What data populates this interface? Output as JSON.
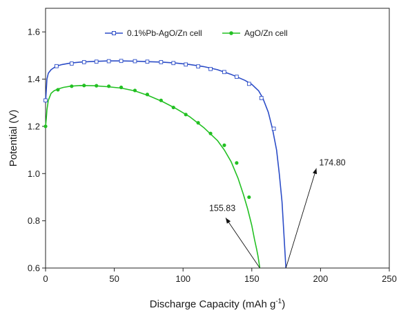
{
  "chart_data": {
    "type": "line",
    "title": "",
    "xlabel": "Discharge Capacity (mAh g",
    "xlabel_sup": "-1",
    "xlabel_tail": ")",
    "ylabel": "Potential (V)",
    "xlim": [
      0,
      250
    ],
    "ylim": [
      0.6,
      1.7
    ],
    "xticks": [
      0,
      50,
      100,
      150,
      200,
      250
    ],
    "yticks": [
      0.6,
      0.8,
      1.0,
      1.2,
      1.4,
      1.6
    ],
    "ytick_labels": [
      "0.6",
      "0.8",
      "1.0",
      "1.2",
      "1.4",
      "1.6"
    ],
    "grid": false,
    "legend_position": "top",
    "series": [
      {
        "name": "0.1%Pb-AgO/Zn cell",
        "color": "#2b4cc7",
        "marker": "open-square",
        "x": [
          0,
          0.5,
          1,
          2,
          4,
          6,
          8,
          12,
          18,
          25,
          35,
          45,
          55,
          65,
          75,
          85,
          95,
          105,
          115,
          125,
          135,
          145,
          150,
          155,
          158,
          162,
          165,
          168,
          170,
          172,
          173,
          174,
          174.8
        ],
        "y": [
          1.3,
          1.35,
          1.4,
          1.425,
          1.44,
          1.448,
          1.455,
          1.462,
          1.468,
          1.472,
          1.475,
          1.477,
          1.477,
          1.476,
          1.474,
          1.472,
          1.468,
          1.462,
          1.453,
          1.44,
          1.42,
          1.395,
          1.378,
          1.35,
          1.32,
          1.26,
          1.19,
          1.1,
          1.0,
          0.88,
          0.78,
          0.68,
          0.6
        ],
        "markers_x": [
          0,
          8,
          19,
          28,
          37,
          46,
          55,
          65,
          74,
          84,
          93,
          102,
          111,
          120,
          130,
          139,
          148,
          157,
          166
        ],
        "markers_y": [
          1.31,
          1.455,
          1.466,
          1.472,
          1.474,
          1.476,
          1.477,
          1.476,
          1.474,
          1.472,
          1.468,
          1.462,
          1.454,
          1.443,
          1.43,
          1.41,
          1.38,
          1.32,
          1.19
        ]
      },
      {
        "name": "AgO/Zn cell",
        "color": "#22c022",
        "marker": "filled-circle",
        "x": [
          0,
          0.5,
          1,
          2,
          4,
          6,
          9,
          13,
          18,
          25,
          35,
          45,
          55,
          65,
          75,
          85,
          95,
          105,
          115,
          125,
          130,
          135,
          140,
          144,
          147,
          150,
          152,
          153.5,
          154.5,
          155.3,
          155.83
        ],
        "y": [
          1.2,
          1.23,
          1.27,
          1.31,
          1.34,
          1.35,
          1.358,
          1.365,
          1.37,
          1.373,
          1.372,
          1.368,
          1.362,
          1.35,
          1.33,
          1.305,
          1.275,
          1.24,
          1.195,
          1.14,
          1.1,
          1.05,
          0.98,
          0.91,
          0.85,
          0.78,
          0.72,
          0.68,
          0.65,
          0.62,
          0.6
        ],
        "markers_x": [
          0,
          9,
          19,
          28,
          37,
          46,
          55,
          65,
          74,
          84,
          93,
          102,
          111,
          120,
          130,
          139,
          148
        ],
        "markers_y": [
          1.2,
          1.355,
          1.37,
          1.373,
          1.372,
          1.37,
          1.365,
          1.352,
          1.335,
          1.31,
          1.28,
          1.25,
          1.215,
          1.17,
          1.12,
          1.045,
          0.9
        ]
      }
    ],
    "annotations": [
      {
        "text": "174.80",
        "point": [
          174.8,
          0.6
        ],
        "text_pos": [
          203,
          1.04
        ]
      },
      {
        "text": "155.83",
        "point": [
          155.83,
          0.6
        ],
        "text_pos": [
          130,
          0.83
        ]
      }
    ]
  }
}
